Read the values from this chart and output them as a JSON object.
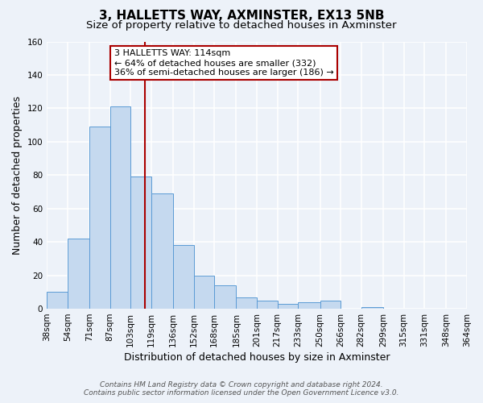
{
  "title": "3, HALLETTS WAY, AXMINSTER, EX13 5NB",
  "subtitle": "Size of property relative to detached houses in Axminster",
  "xlabel": "Distribution of detached houses by size in Axminster",
  "ylabel": "Number of detached properties",
  "bar_values": [
    10,
    42,
    109,
    121,
    79,
    69,
    38,
    20,
    14,
    7,
    5,
    3,
    4,
    5,
    0,
    1,
    0,
    0,
    0,
    0
  ],
  "bin_labels": [
    "38sqm",
    "54sqm",
    "71sqm",
    "87sqm",
    "103sqm",
    "119sqm",
    "136sqm",
    "152sqm",
    "168sqm",
    "185sqm",
    "201sqm",
    "217sqm",
    "233sqm",
    "250sqm",
    "266sqm",
    "282sqm",
    "299sqm",
    "315sqm",
    "331sqm",
    "348sqm",
    "364sqm"
  ],
  "bar_color": "#c5d9ef",
  "bar_edge_color": "#5b9bd5",
  "vline_x": 114,
  "vline_color": "#aa0000",
  "bin_edges": [
    38,
    54,
    71,
    87,
    103,
    119,
    136,
    152,
    168,
    185,
    201,
    217,
    233,
    250,
    266,
    282,
    299,
    315,
    331,
    348,
    364
  ],
  "ylim": [
    0,
    160
  ],
  "yticks": [
    0,
    20,
    40,
    60,
    80,
    100,
    120,
    140,
    160
  ],
  "annotation_title": "3 HALLETTS WAY: 114sqm",
  "annotation_line1": "← 64% of detached houses are smaller (332)",
  "annotation_line2": "36% of semi-detached houses are larger (186) →",
  "annotation_box_color": "#ffffff",
  "annotation_box_edge": "#aa0000",
  "footer_line1": "Contains HM Land Registry data © Crown copyright and database right 2024.",
  "footer_line2": "Contains public sector information licensed under the Open Government Licence v3.0.",
  "background_color": "#edf2f9",
  "plot_bg_color": "#edf2f9",
  "grid_color": "#ffffff",
  "title_fontsize": 11,
  "subtitle_fontsize": 9.5,
  "axis_label_fontsize": 9,
  "tick_fontsize": 7.5,
  "annotation_fontsize": 8,
  "footer_fontsize": 6.5
}
